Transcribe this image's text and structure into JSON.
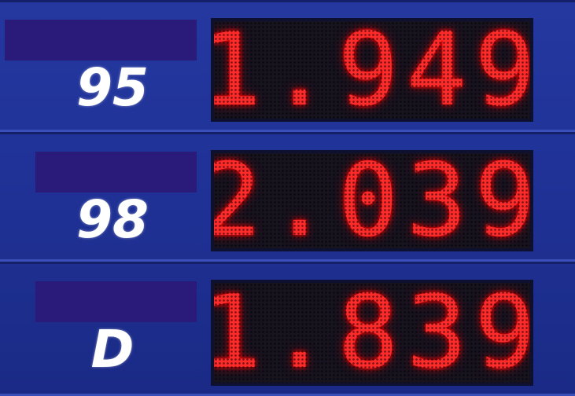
{
  "rows": [
    {
      "label": "95",
      "price": "1.949"
    },
    {
      "label": "98",
      "price": "2.039"
    },
    {
      "label": "D",
      "price": "1.839"
    }
  ]
}
